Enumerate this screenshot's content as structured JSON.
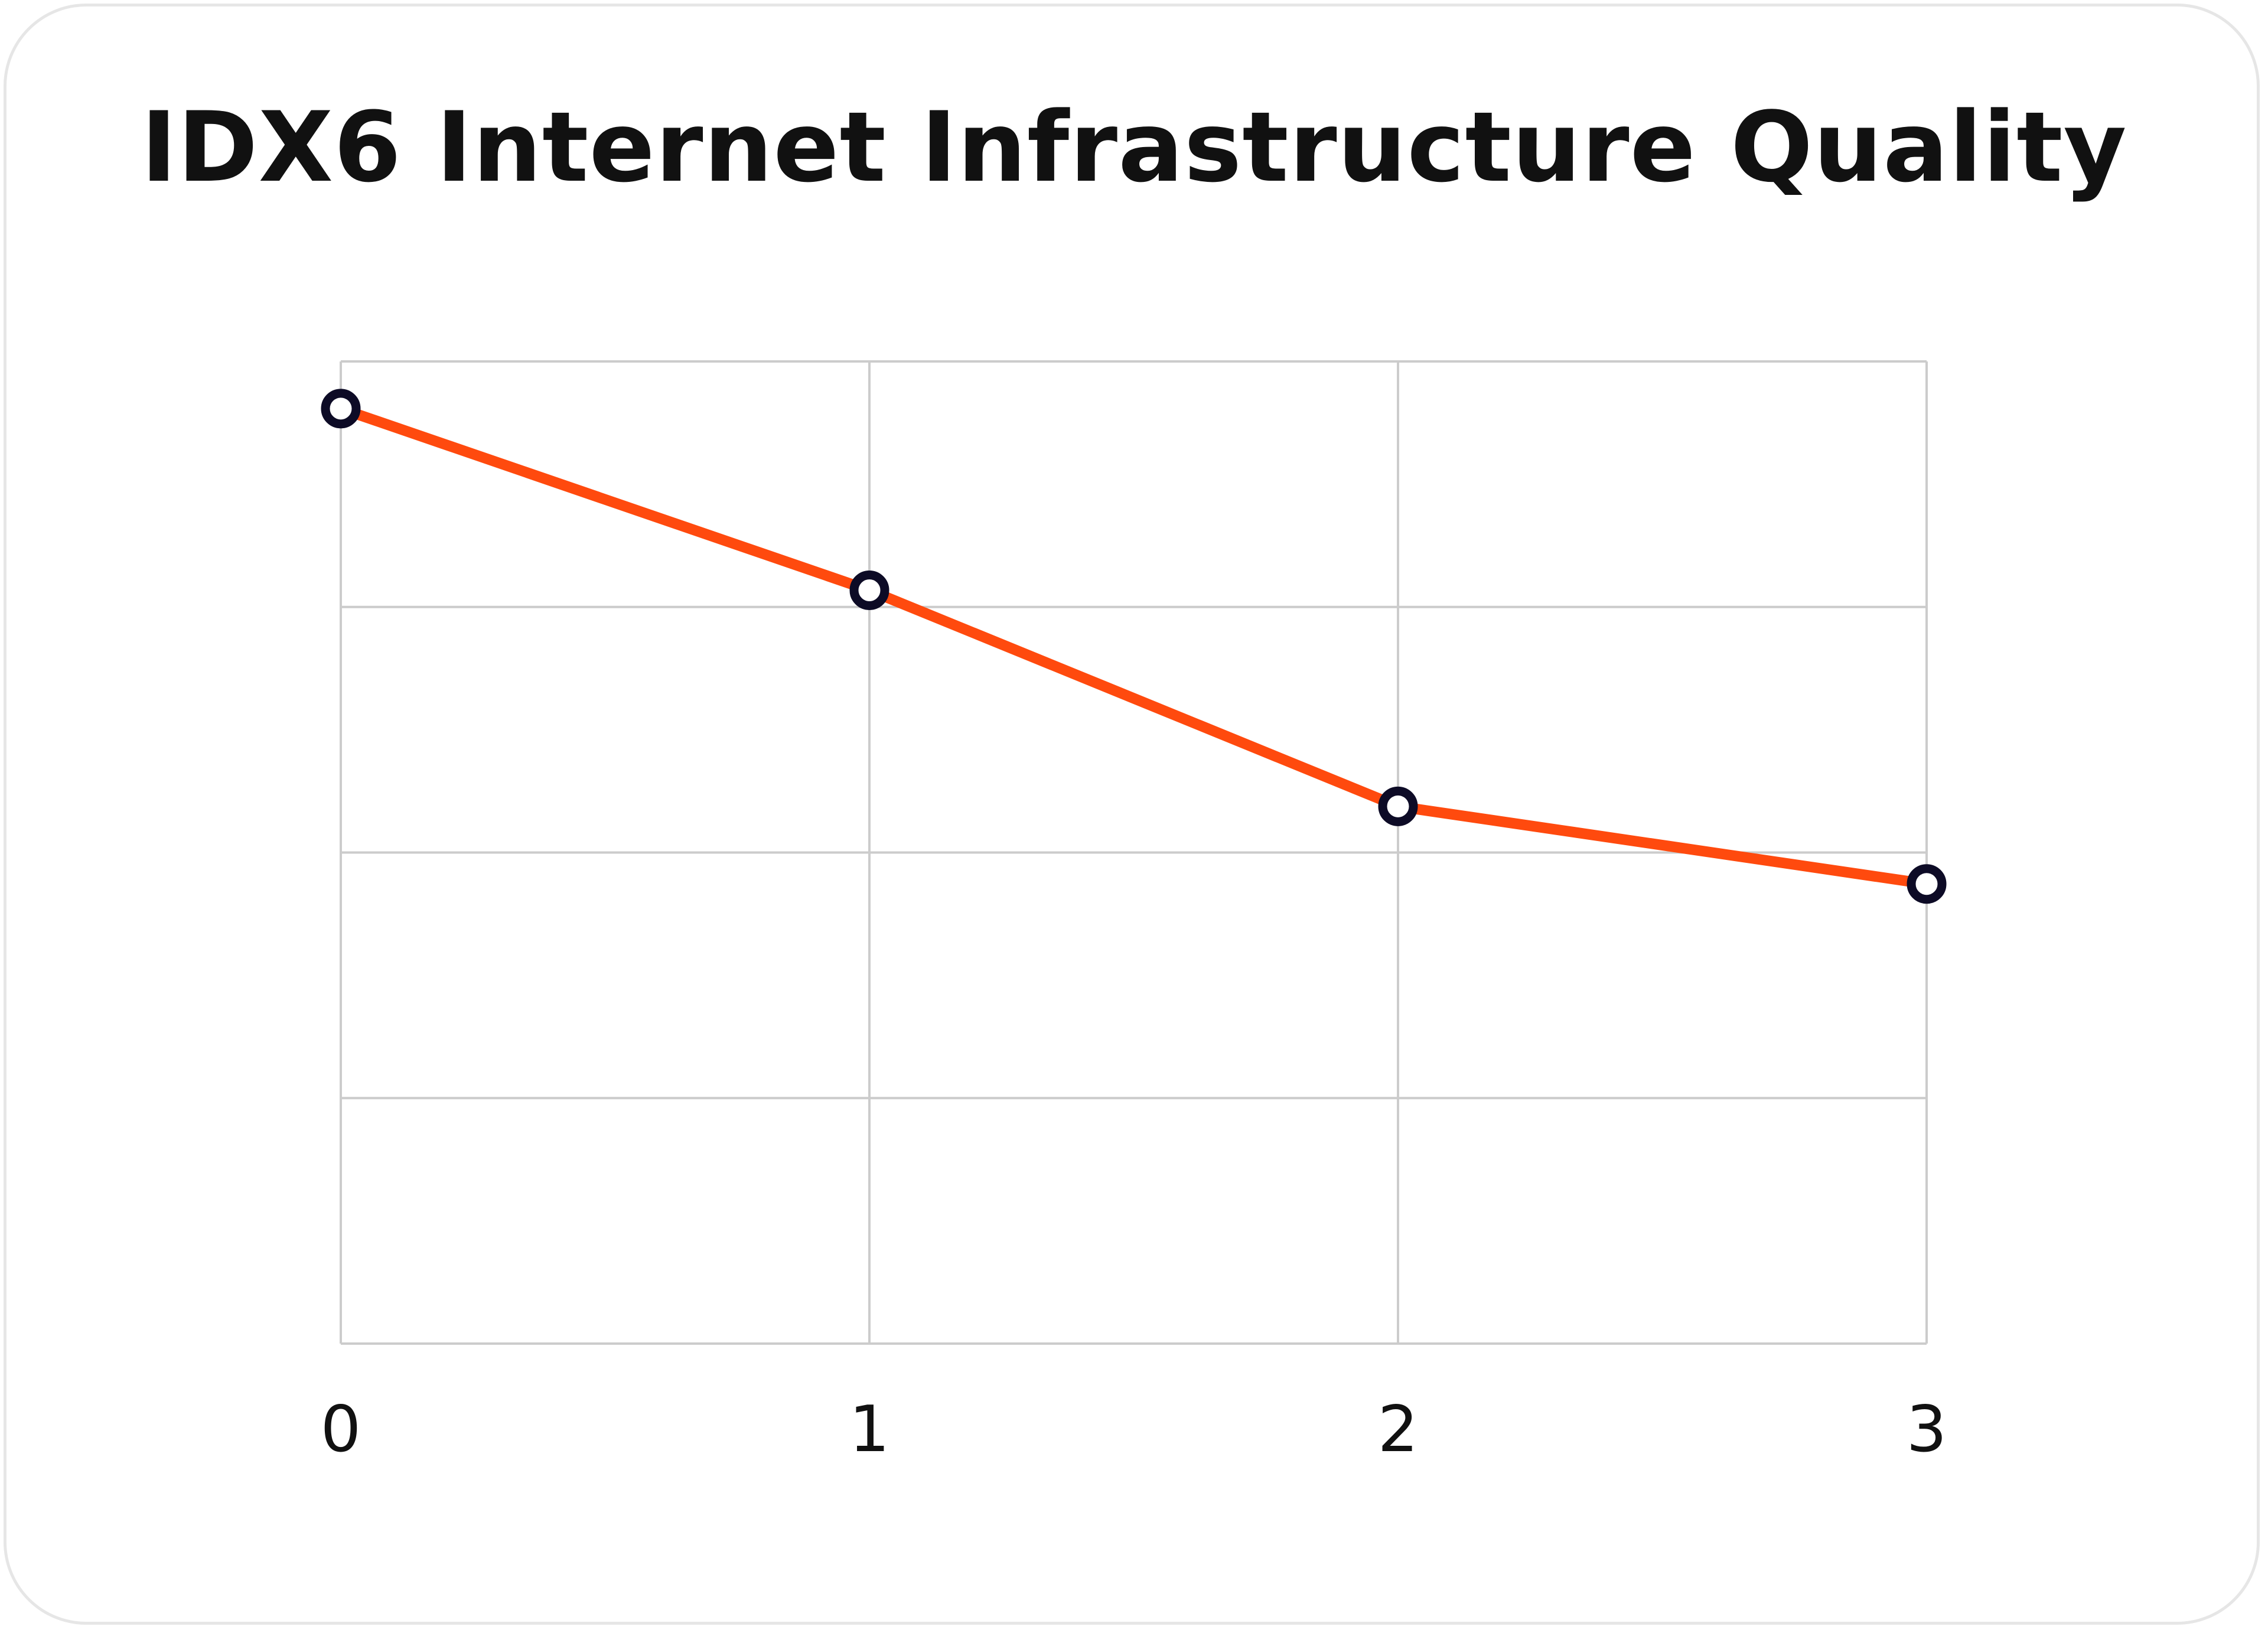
{
  "chart_data": {
    "type": "line",
    "title": "IDX6 Internet Infrastructure Quality",
    "xlabel": "",
    "ylabel": "",
    "x": [
      0,
      1,
      2,
      3
    ],
    "x_tick_labels": [
      "0",
      "1",
      "2",
      "3"
    ],
    "series": [
      {
        "values": [
          0.952,
          0.767,
          0.547,
          0.468
        ]
      }
    ],
    "xlim": [
      0,
      3
    ],
    "ylim": [
      0,
      1
    ],
    "y_gridlines": 4,
    "grid": true,
    "legend": "none",
    "colors": {
      "line": "#ff4a0e",
      "marker_stroke": "#0d0b26",
      "marker_fill": "#ffffff",
      "grid": "#cccccc"
    }
  }
}
